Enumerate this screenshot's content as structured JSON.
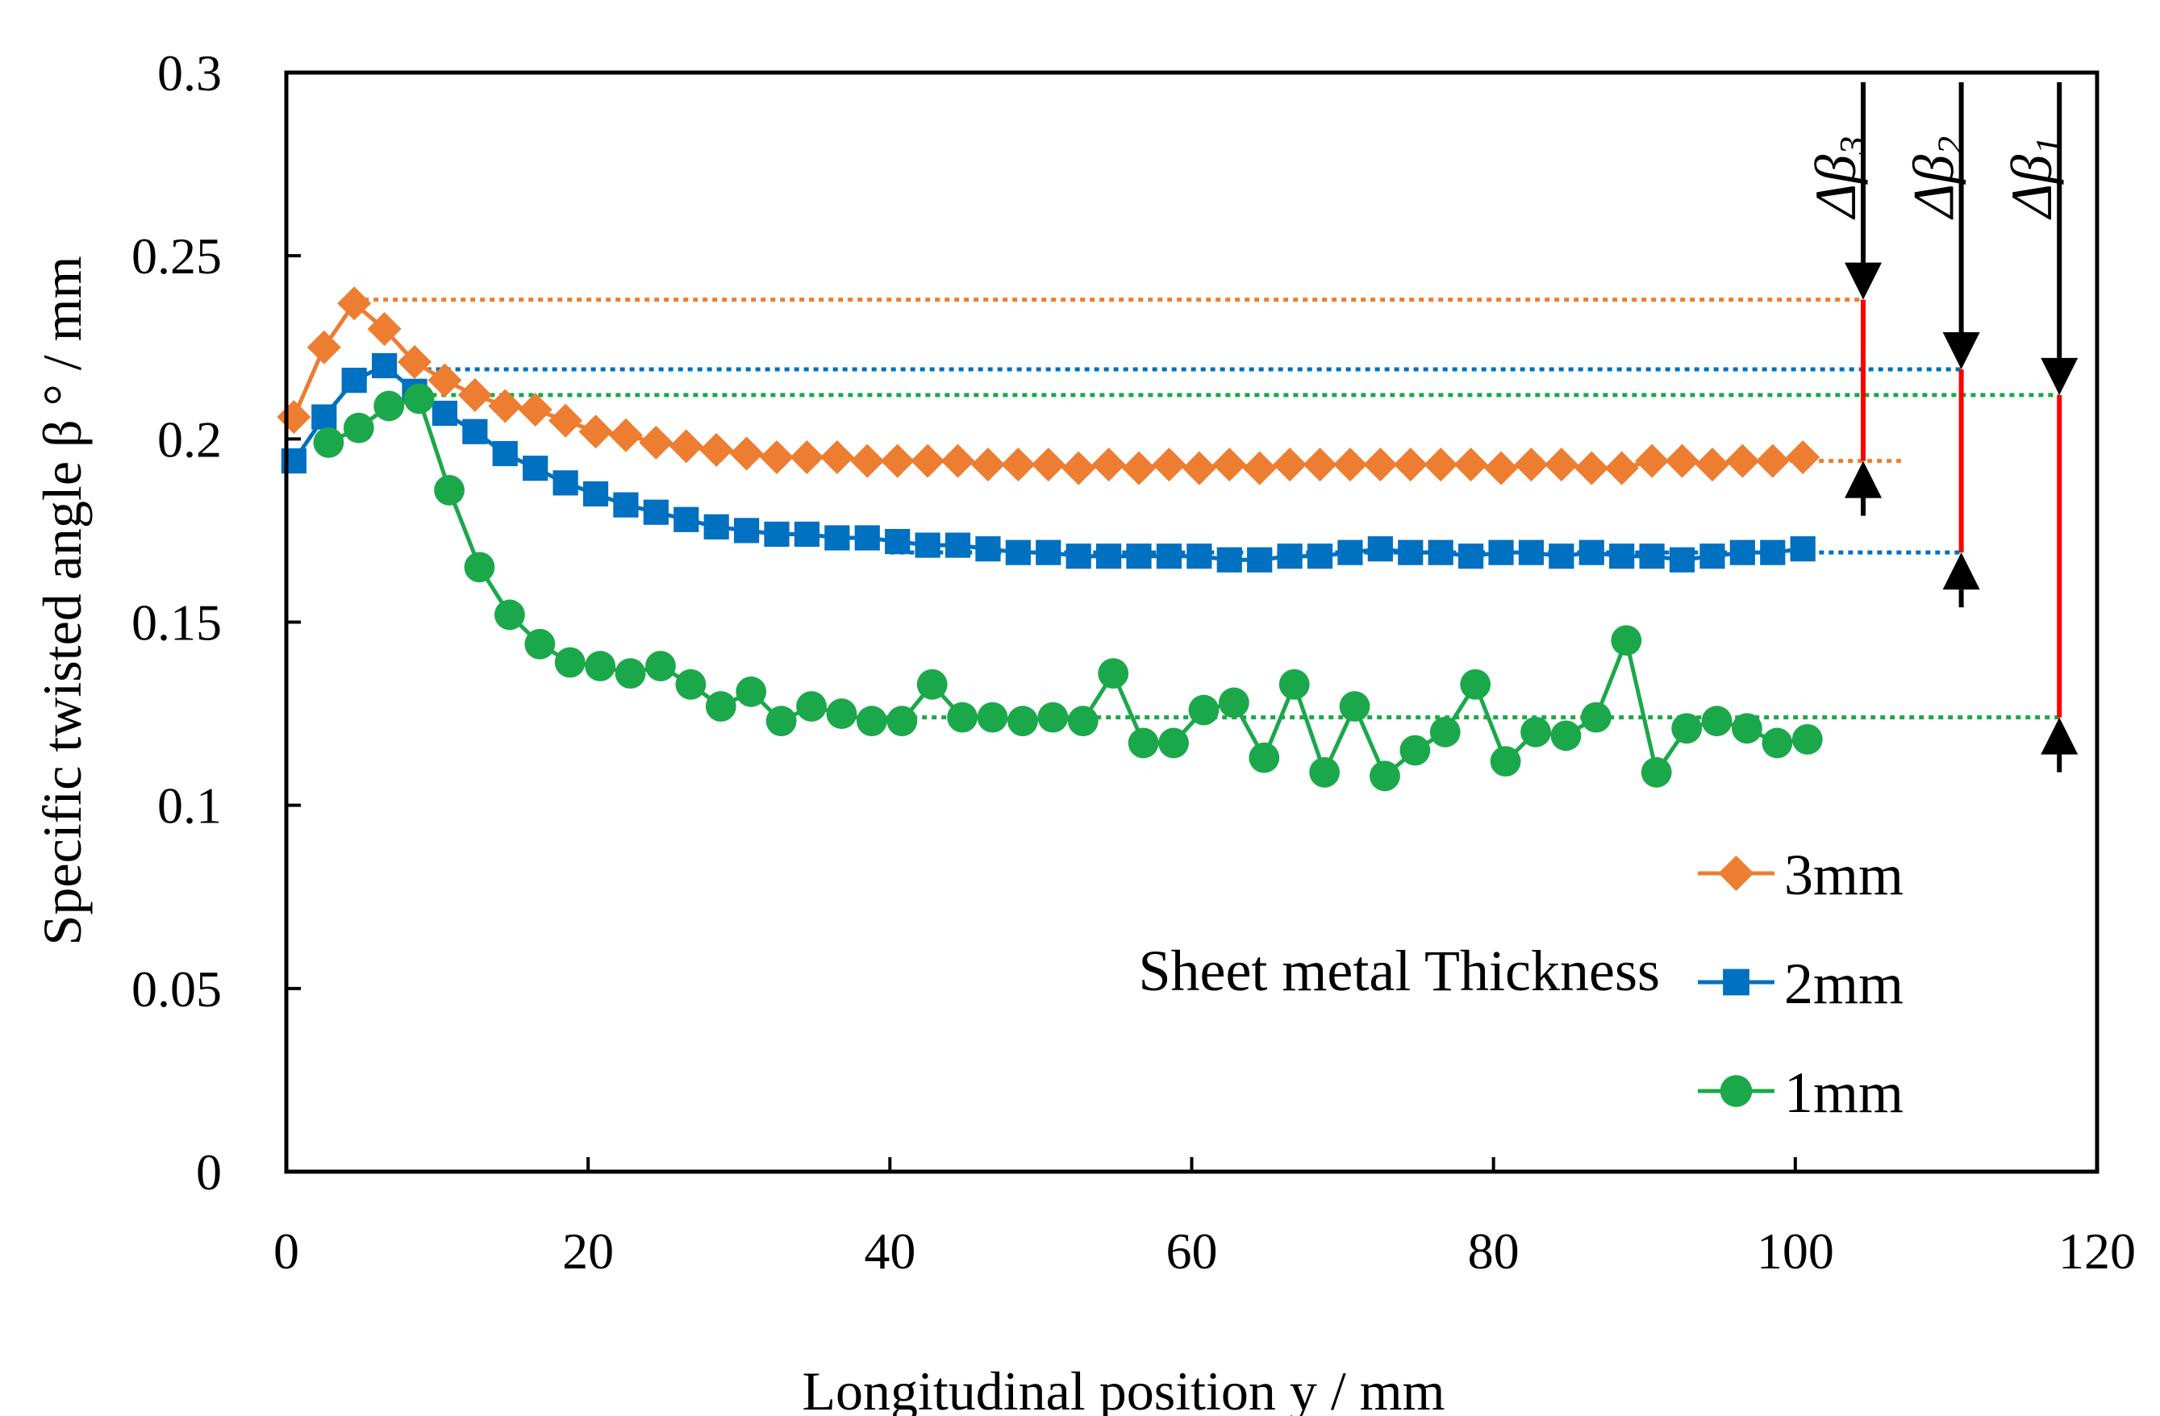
{
  "chart_data": {
    "type": "line",
    "xlabel": "Longitudinal position y / mm",
    "ylabel": "Specific twisted angle β ° / mm",
    "xlim": [
      0,
      120
    ],
    "ylim": [
      0,
      0.3
    ],
    "xticks": [
      0,
      20,
      40,
      60,
      80,
      100,
      120
    ],
    "xtick_labels": [
      "0",
      "20",
      "40",
      "60",
      "80",
      "100",
      "120"
    ],
    "yticks": [
      0,
      0.05,
      0.1,
      0.15,
      0.2,
      0.25,
      0.3
    ],
    "ytick_labels": [
      "0",
      "0.05",
      "0.1",
      "0.15",
      "0.2",
      "0.25",
      "0.3"
    ],
    "grid": false,
    "legend_title": "Sheet metal Thickness",
    "legend_position": "bottom-right",
    "series": [
      {
        "name": "3mm",
        "color": "#ED7D31",
        "marker": "diamond",
        "x": [
          0.5,
          2.5,
          4.5,
          6.5,
          8.5,
          10.5,
          12.5,
          14.5,
          16.5,
          18.5,
          20.5,
          22.5,
          24.5,
          26.5,
          28.5,
          30.5,
          32.5,
          34.5,
          36.5,
          38.5,
          40.5,
          42.5,
          44.5,
          46.5,
          48.5,
          50.5,
          52.5,
          54.5,
          56.5,
          58.5,
          60.5,
          62.5,
          64.5,
          66.5,
          68.5,
          70.5,
          72.5,
          74.5,
          76.5,
          78.5,
          80.5,
          82.5,
          84.5,
          86.5,
          88.5,
          90.5,
          92.5,
          94.5,
          96.5,
          98.5,
          100.5
        ],
        "values": [
          0.206,
          0.225,
          0.237,
          0.23,
          0.221,
          0.216,
          0.212,
          0.209,
          0.208,
          0.205,
          0.202,
          0.201,
          0.199,
          0.198,
          0.197,
          0.196,
          0.195,
          0.195,
          0.195,
          0.194,
          0.194,
          0.194,
          0.194,
          0.193,
          0.193,
          0.193,
          0.192,
          0.193,
          0.192,
          0.193,
          0.192,
          0.193,
          0.192,
          0.193,
          0.193,
          0.193,
          0.193,
          0.193,
          0.193,
          0.193,
          0.192,
          0.193,
          0.193,
          0.192,
          0.192,
          0.194,
          0.194,
          0.193,
          0.194,
          0.194,
          0.195
        ]
      },
      {
        "name": "2mm",
        "color": "#0070C0",
        "marker": "square",
        "x": [
          0.5,
          2.5,
          4.5,
          6.5,
          8.5,
          10.5,
          12.5,
          14.5,
          16.5,
          18.5,
          20.5,
          22.5,
          24.5,
          26.5,
          28.5,
          30.5,
          32.5,
          34.5,
          36.5,
          38.5,
          40.5,
          42.5,
          44.5,
          46.5,
          48.5,
          50.5,
          52.5,
          54.5,
          56.5,
          58.5,
          60.5,
          62.5,
          64.5,
          66.5,
          68.5,
          70.5,
          72.5,
          74.5,
          76.5,
          78.5,
          80.5,
          82.5,
          84.5,
          86.5,
          88.5,
          90.5,
          92.5,
          94.5,
          96.5,
          98.5,
          100.5
        ],
        "values": [
          0.194,
          0.206,
          0.216,
          0.22,
          0.213,
          0.207,
          0.202,
          0.196,
          0.192,
          0.188,
          0.185,
          0.182,
          0.18,
          0.178,
          0.176,
          0.175,
          0.174,
          0.174,
          0.173,
          0.173,
          0.172,
          0.171,
          0.171,
          0.17,
          0.169,
          0.169,
          0.168,
          0.168,
          0.168,
          0.168,
          0.168,
          0.167,
          0.167,
          0.168,
          0.168,
          0.169,
          0.17,
          0.169,
          0.169,
          0.168,
          0.169,
          0.169,
          0.168,
          0.169,
          0.168,
          0.168,
          0.167,
          0.168,
          0.169,
          0.169,
          0.17
        ]
      },
      {
        "name": "1mm",
        "color": "#1BA84A",
        "marker": "circle",
        "x": [
          2.8,
          4.8,
          6.8,
          8.8,
          10.8,
          12.8,
          14.8,
          16.8,
          18.8,
          20.8,
          22.8,
          24.8,
          26.8,
          28.8,
          30.8,
          32.8,
          34.8,
          36.8,
          38.8,
          40.8,
          42.8,
          44.8,
          46.8,
          48.8,
          50.8,
          52.8,
          54.8,
          56.8,
          58.8,
          60.8,
          62.8,
          64.8,
          66.8,
          68.8,
          70.8,
          72.8,
          74.8,
          76.8,
          78.8,
          80.8,
          82.8,
          84.8,
          86.8,
          88.8,
          90.8,
          92.8,
          94.8,
          96.8,
          98.8,
          100.8
        ],
        "values": [
          0.199,
          0.203,
          0.209,
          0.211,
          0.186,
          0.165,
          0.152,
          0.144,
          0.139,
          0.138,
          0.136,
          0.138,
          0.133,
          0.127,
          0.131,
          0.123,
          0.127,
          0.125,
          0.123,
          0.123,
          0.133,
          0.124,
          0.124,
          0.123,
          0.124,
          0.123,
          0.136,
          0.117,
          0.117,
          0.126,
          0.128,
          0.113,
          0.133,
          0.109,
          0.127,
          0.108,
          0.115,
          0.12,
          0.133,
          0.112,
          0.12,
          0.119,
          0.124,
          0.145,
          0.109,
          0.121,
          0.123,
          0.121,
          0.117,
          0.118
        ]
      }
    ],
    "annotations": [
      {
        "label": "Δβ3",
        "series": "3mm",
        "x": 104.5,
        "max": 0.238,
        "min": 0.194,
        "line_from": 4.5,
        "line_to": 107
      },
      {
        "label": "Δβ2",
        "series": "2mm",
        "x": 111,
        "max": 0.219,
        "min": 0.169,
        "line_from": 8,
        "line_to": 40
      },
      {
        "label": "Δβ1",
        "series": "1mm",
        "x": 117.5,
        "max": 0.212,
        "min": 0.124,
        "line_from": 9,
        "line_to": 37
      }
    ]
  }
}
